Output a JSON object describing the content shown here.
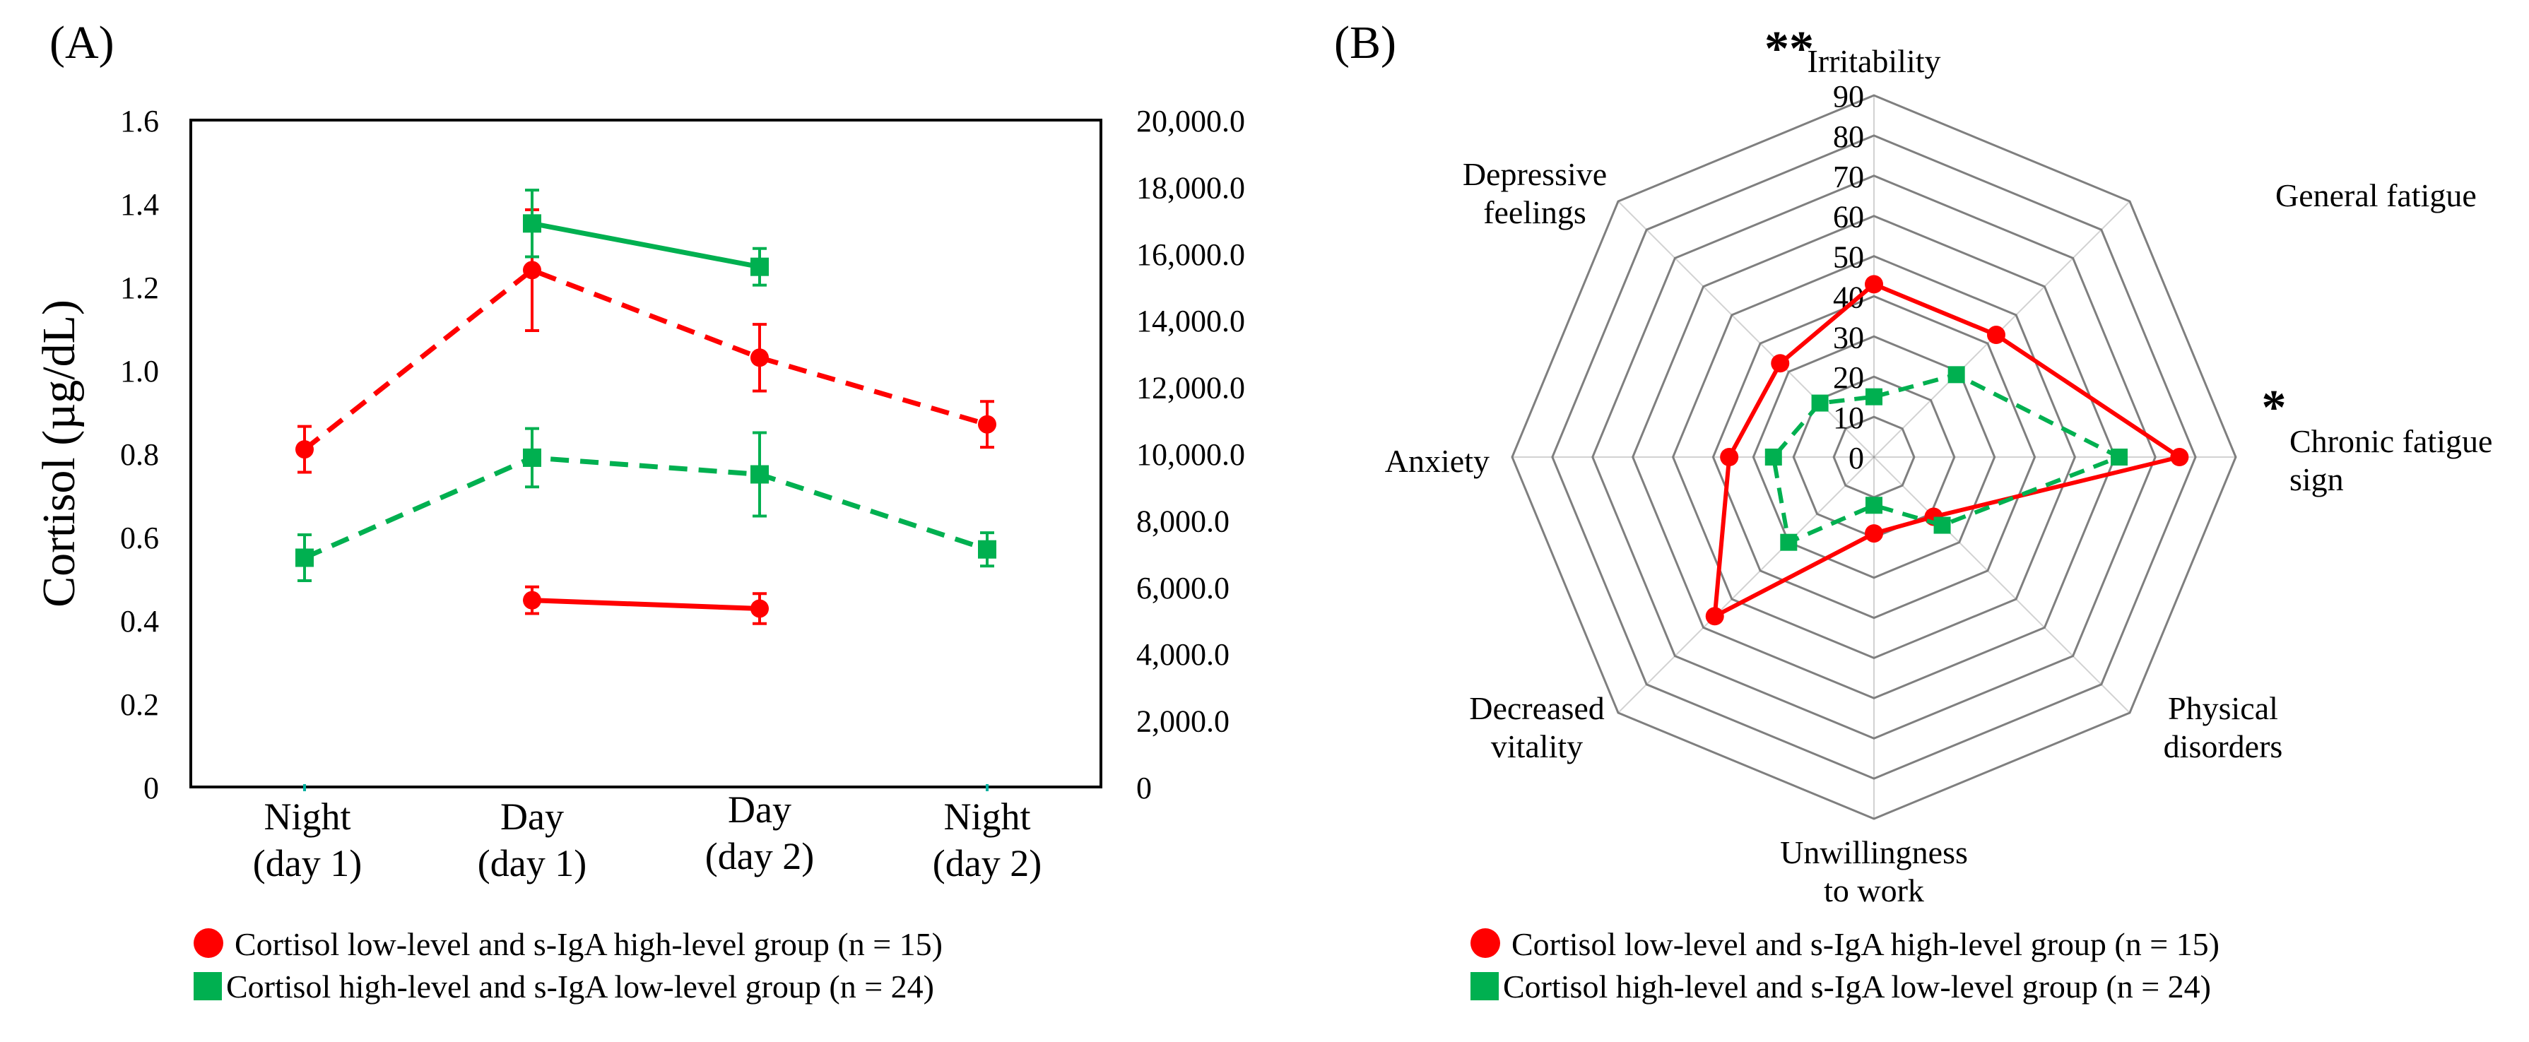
{
  "colors": {
    "red": "#ff0000",
    "green": "#00b050",
    "grid": "#7f7f7f",
    "axis": "#000000"
  },
  "chart_data": [
    {
      "panel_label": "(A)",
      "type": "line",
      "categories": [
        [
          "Night",
          "(day 1)"
        ],
        [
          "Day",
          "(day 1)"
        ],
        [
          "Day",
          "(day 2)"
        ],
        [
          "Night",
          "(day 2)"
        ]
      ],
      "ylabel": "Cortisol (µg/dL)",
      "ylim": [
        0,
        1.6
      ],
      "yticks": [
        "0",
        "0.2",
        "0.4",
        "0.6",
        "0.8",
        "1.0",
        "1.2",
        "1.4",
        "1.6"
      ],
      "y2lim": [
        0,
        20000
      ],
      "y2ticks": [
        "0",
        "2,000.0",
        "4,000.0",
        "6,000.0",
        "8,000.0",
        "10,000.0",
        "12,000.0",
        "14,000.0",
        "16,000.0",
        "18,000.0",
        "20,000.0"
      ],
      "series": [
        {
          "name": "Cortisol low-level and s-IgA high-level group (n = 15) – cortisol",
          "group": "low",
          "axis": "left",
          "dash": true,
          "values": [
            0.81,
            1.24,
            1.03,
            0.87
          ],
          "errors": [
            0.055,
            0.145,
            0.08,
            0.055
          ]
        },
        {
          "name": "Cortisol high-level and s-IgA low-level group (n = 24) – cortisol",
          "group": "high",
          "axis": "left",
          "dash": true,
          "values": [
            0.55,
            0.79,
            0.75,
            0.57
          ],
          "errors": [
            0.055,
            0.07,
            0.1,
            0.04
          ]
        },
        {
          "name": "Cortisol high-level and s-IgA low-level group (n = 24) – s-IgA",
          "group": "high",
          "axis": "right",
          "dash": false,
          "values": [
            null,
            16900,
            15600,
            null
          ],
          "errors": [
            null,
            1000,
            550,
            null
          ]
        },
        {
          "name": "Cortisol low-level and s-IgA high-level group (n = 15) – s-IgA",
          "group": "low",
          "axis": "right",
          "dash": false,
          "values": [
            null,
            5600,
            5350,
            null
          ],
          "errors": [
            null,
            400,
            450,
            null
          ]
        }
      ],
      "legend": [
        "Cortisol low-level and s-IgA high-level group (n = 15)",
        "Cortisol high-level and s-IgA low-level group (n = 24)"
      ]
    },
    {
      "panel_label": "(B)",
      "type": "radar",
      "axes": [
        {
          "label": [
            "Irritability"
          ],
          "significance": "**"
        },
        {
          "label": [
            "General fatigue"
          ],
          "significance": ""
        },
        {
          "label": [
            "Chronic fatigue",
            "sign"
          ],
          "significance": "*"
        },
        {
          "label": [
            "Physical",
            "disorders"
          ],
          "significance": ""
        },
        {
          "label": [
            "Unwillingness",
            "to work"
          ],
          "significance": ""
        },
        {
          "label": [
            "Decreased",
            "vitality"
          ],
          "significance": ""
        },
        {
          "label": [
            "Anxiety"
          ],
          "significance": ""
        },
        {
          "label": [
            "Depressive",
            "feelings"
          ],
          "significance": ""
        }
      ],
      "rticks": [
        "0",
        "10",
        "20",
        "30",
        "40",
        "50",
        "60",
        "70",
        "80",
        "90"
      ],
      "rlim": [
        0,
        90
      ],
      "series": [
        {
          "name": "Cortisol low-level and s-IgA high-level group (n = 15)",
          "group": "low",
          "dash": false,
          "values": [
            43,
            43,
            76,
            21,
            19,
            56,
            36,
            33
          ]
        },
        {
          "name": "Cortisol high-level and s-IgA low-level group (n = 24)",
          "group": "high",
          "dash": true,
          "values": [
            15,
            29,
            61,
            24,
            12,
            30,
            25,
            19
          ]
        }
      ],
      "legend": [
        "Cortisol low-level and s-IgA high-level group (n = 15)",
        "Cortisol high-level and s-IgA low-level group (n = 24)"
      ]
    }
  ]
}
